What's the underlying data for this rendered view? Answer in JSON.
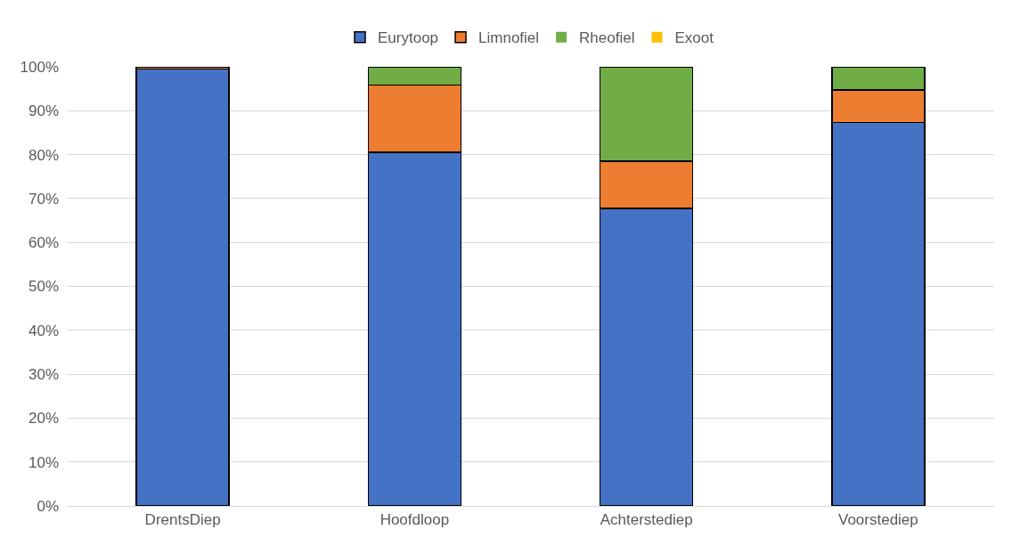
{
  "chart_data": {
    "type": "bar",
    "stacked": true,
    "categories": [
      "DrentsDiep",
      "Hoofdloop",
      "Achterstediep",
      "Voorstediep"
    ],
    "series": [
      {
        "name": "Eurytoop",
        "color": "#4472c4",
        "values": [
          99.5,
          80.5,
          67.7,
          87.3
        ]
      },
      {
        "name": "Limnofiel",
        "color": "#ed7d31",
        "values": [
          0.5,
          15.3,
          10.8,
          7.4
        ]
      },
      {
        "name": "Rheofiel",
        "color": "#70ad47",
        "values": [
          0,
          4.2,
          21.5,
          5.3
        ]
      },
      {
        "name": "Exoot",
        "color": "#ffc000",
        "values": [
          0,
          0,
          0,
          0
        ]
      }
    ],
    "ylim": [
      0,
      100
    ],
    "yticks": [
      {
        "value": 0,
        "label": "0%"
      },
      {
        "value": 10,
        "label": "10%"
      },
      {
        "value": 20,
        "label": "20%"
      },
      {
        "value": 30,
        "label": "30%"
      },
      {
        "value": 40,
        "label": "40%"
      },
      {
        "value": 50,
        "label": "50%"
      },
      {
        "value": 60,
        "label": "60%"
      },
      {
        "value": 70,
        "label": "70%"
      },
      {
        "value": 80,
        "label": "80%"
      },
      {
        "value": 90,
        "label": "90%"
      },
      {
        "value": 100,
        "label": "100%"
      }
    ],
    "grid": "y",
    "legend": "top"
  }
}
